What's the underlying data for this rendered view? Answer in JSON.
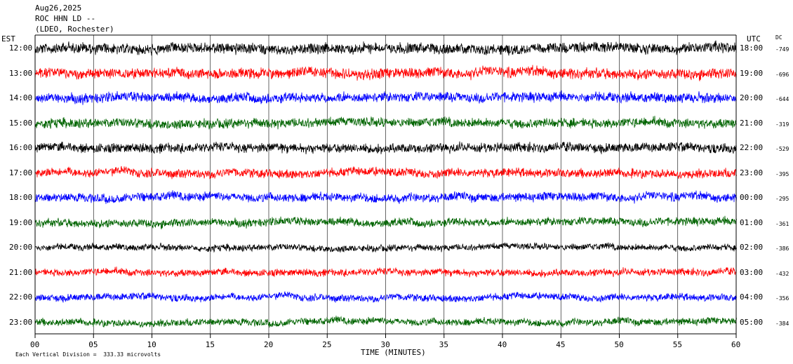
{
  "header": {
    "date": "Aug26,2025",
    "station": "ROC HHN LD --",
    "network": "(LDEO, Rochester)"
  },
  "left_axis_label": "EST",
  "right_axis_label": "UTC",
  "dc_label": "DC",
  "footer": {
    "scale_text": "Each Vertical Division =  333.33 microvolts"
  },
  "colors": {
    "black": "#000000",
    "red": "#ff0000",
    "blue": "#0000ff",
    "green": "#006400",
    "grid": "#000000"
  },
  "chart_data": {
    "type": "line",
    "title": "",
    "xlabel": "TIME (MINUTES)",
    "ylabel": "",
    "xlim": [
      0,
      60
    ],
    "x_ticks": [
      "00",
      "05",
      "10",
      "15",
      "20",
      "25",
      "30",
      "35",
      "40",
      "45",
      "50",
      "55",
      "60"
    ],
    "grid": "vertical lines every 5 minutes",
    "traces": [
      {
        "est": "12:00",
        "utc": "18:00",
        "dc": "-749",
        "color": "black",
        "amp": 0.9
      },
      {
        "est": "13:00",
        "utc": "19:00",
        "dc": "-696",
        "color": "red",
        "amp": 0.9
      },
      {
        "est": "14:00",
        "utc": "20:00",
        "dc": "-644",
        "color": "blue",
        "amp": 0.85
      },
      {
        "est": "15:00",
        "utc": "21:00",
        "dc": "-319",
        "color": "green",
        "amp": 0.8
      },
      {
        "est": "16:00",
        "utc": "22:00",
        "dc": "-529",
        "color": "black",
        "amp": 0.8
      },
      {
        "est": "17:00",
        "utc": "23:00",
        "dc": "-395",
        "color": "red",
        "amp": 0.75
      },
      {
        "est": "18:00",
        "utc": "00:00",
        "dc": "-295",
        "color": "blue",
        "amp": 0.75
      },
      {
        "est": "19:00",
        "utc": "01:00",
        "dc": "-361",
        "color": "green",
        "amp": 0.7
      },
      {
        "est": "20:00",
        "utc": "02:00",
        "dc": "-386",
        "color": "black",
        "amp": 0.55
      },
      {
        "est": "21:00",
        "utc": "03:00",
        "dc": "-432",
        "color": "red",
        "amp": 0.6
      },
      {
        "est": "22:00",
        "utc": "04:00",
        "dc": "-356",
        "color": "blue",
        "amp": 0.6
      },
      {
        "est": "23:00",
        "utc": "05:00",
        "dc": "-384",
        "color": "green",
        "amp": 0.6
      }
    ]
  }
}
